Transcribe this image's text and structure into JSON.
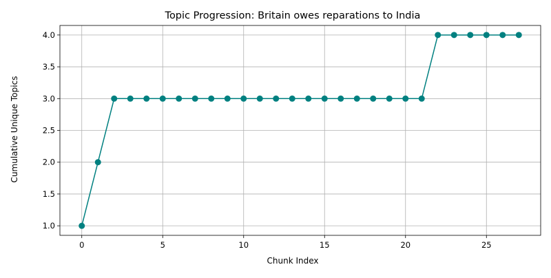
{
  "chart_data": {
    "type": "line",
    "title": "Topic Progression: Britain owes reparations to India",
    "xlabel": "Chunk Index",
    "ylabel": "Cumulative Unique Topics",
    "xlim": [
      -1.35,
      28.35
    ],
    "ylim": [
      0.85,
      4.15
    ],
    "xticks": [
      0,
      5,
      10,
      15,
      20,
      25
    ],
    "xtick_labels": [
      "0",
      "5",
      "10",
      "15",
      "20",
      "25"
    ],
    "yticks": [
      1.0,
      1.5,
      2.0,
      2.5,
      3.0,
      3.5,
      4.0
    ],
    "ytick_labels": [
      "1.0",
      "1.5",
      "2.0",
      "2.5",
      "3.0",
      "3.5",
      "4.0"
    ],
    "grid": true,
    "series": [
      {
        "color": "#008080",
        "marker": "circle",
        "x": [
          0,
          1,
          2,
          3,
          4,
          5,
          6,
          7,
          8,
          9,
          10,
          11,
          12,
          13,
          14,
          15,
          16,
          17,
          18,
          19,
          20,
          21,
          22,
          23,
          24,
          25,
          26,
          27
        ],
        "y": [
          1,
          2,
          3,
          3,
          3,
          3,
          3,
          3,
          3,
          3,
          3,
          3,
          3,
          3,
          3,
          3,
          3,
          3,
          3,
          3,
          3,
          3,
          4,
          4,
          4,
          4,
          4,
          4
        ]
      }
    ]
  }
}
